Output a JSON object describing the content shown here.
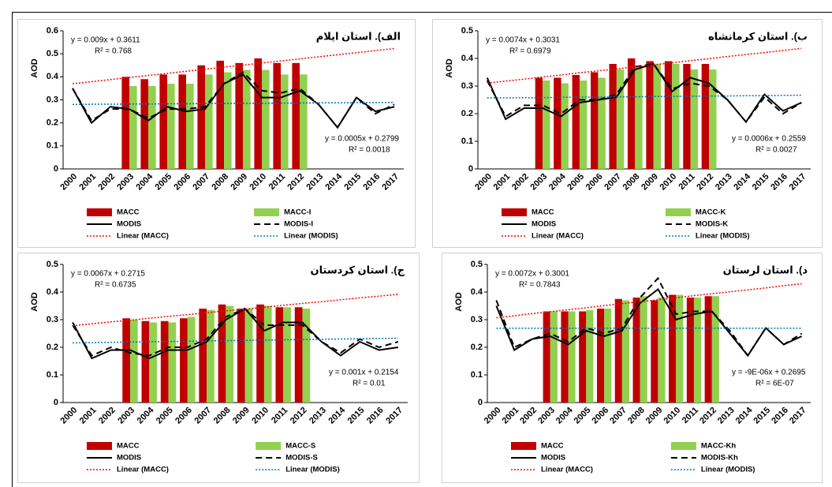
{
  "chart_data": [
    {
      "type": "bar",
      "title": "الف). استان ایلام",
      "y_label": "AOD",
      "categories": [
        "2000",
        "2001",
        "2002",
        "2003",
        "2004",
        "2005",
        "2006",
        "2007",
        "2008",
        "2009",
        "2010",
        "2011",
        "2012",
        "2013",
        "2014",
        "2015",
        "2016",
        "2017"
      ],
      "ylim": [
        0,
        0.6
      ],
      "yticks": [
        0,
        0.1,
        0.2,
        0.3,
        0.4,
        0.5,
        0.6
      ],
      "series": [
        {
          "name": "MACC",
          "type": "bar",
          "color": "#c00000",
          "values": [
            null,
            null,
            null,
            0.4,
            0.39,
            0.41,
            0.41,
            0.45,
            0.47,
            0.46,
            0.48,
            0.46,
            0.46,
            null,
            null,
            null,
            null,
            null
          ]
        },
        {
          "name": "MACC-I",
          "type": "bar",
          "color": "#92d050",
          "values": [
            null,
            null,
            null,
            0.36,
            0.36,
            0.37,
            0.37,
            0.41,
            0.42,
            0.43,
            0.43,
            0.41,
            0.41,
            null,
            null,
            null,
            null,
            null
          ]
        },
        {
          "name": "MODIS",
          "type": "line",
          "dash": "solid",
          "color": "#000000",
          "values": [
            0.35,
            0.2,
            0.27,
            0.26,
            0.21,
            0.27,
            0.25,
            0.26,
            0.37,
            0.41,
            0.31,
            0.31,
            0.34,
            0.28,
            0.18,
            0.31,
            0.25,
            0.27
          ]
        },
        {
          "name": "MODIS-I",
          "type": "line",
          "dash": "dashed",
          "color": "#000000",
          "values": [
            0.35,
            0.21,
            0.26,
            0.26,
            0.22,
            0.26,
            0.26,
            0.27,
            0.37,
            0.42,
            0.34,
            0.33,
            0.35,
            0.28,
            0.18,
            0.31,
            0.24,
            0.28
          ]
        },
        {
          "name": "Linear (MACC)",
          "type": "line",
          "dash": "dotted",
          "color": "#ff0000",
          "values": [
            0.37,
            0.379,
            0.388,
            0.397,
            0.406,
            0.415,
            0.424,
            0.433,
            0.442,
            0.451,
            0.46,
            0.469,
            0.478,
            0.487,
            0.496,
            0.505,
            0.514,
            0.523
          ]
        },
        {
          "name": "Linear (MODIS)",
          "type": "line",
          "dash": "dotted",
          "color": "#0070c0",
          "values": [
            0.28,
            0.281,
            0.281,
            0.282,
            0.282,
            0.283,
            0.283,
            0.284,
            0.284,
            0.285,
            0.285,
            0.286,
            0.286,
            0.287,
            0.287,
            0.288,
            0.288,
            0.289
          ]
        }
      ],
      "annotations": [
        {
          "text": "y = 0.009x + 0.3611",
          "color": "#ff0000"
        },
        {
          "text": "R² = 0.768",
          "color": "#ff0000"
        },
        {
          "text": "y = 0.0005x + 0.2799",
          "color": "#0070c0"
        },
        {
          "text": "R² = 0.0018",
          "color": "#0070c0"
        }
      ]
    },
    {
      "type": "bar",
      "title": "ب). استان کرمانشاه",
      "y_label": "AOD",
      "categories": [
        "2000",
        "2001",
        "2002",
        "2003",
        "2004",
        "2005",
        "2006",
        "2007",
        "2008",
        "2009",
        "2010",
        "2011",
        "2012",
        "2013",
        "2014",
        "2015",
        "2016",
        "2017"
      ],
      "ylim": [
        0,
        0.5
      ],
      "yticks": [
        0,
        0.1,
        0.2,
        0.3,
        0.4,
        0.5
      ],
      "series": [
        {
          "name": "MACC",
          "type": "bar",
          "color": "#c00000",
          "values": [
            null,
            null,
            null,
            0.33,
            0.33,
            0.34,
            0.35,
            0.38,
            0.4,
            0.39,
            0.39,
            0.38,
            0.38,
            null,
            null,
            null,
            null,
            null
          ]
        },
        {
          "name": "MACC-K",
          "type": "bar",
          "color": "#92d050",
          "values": [
            null,
            null,
            null,
            0.32,
            0.31,
            0.32,
            0.33,
            0.36,
            0.37,
            0.38,
            0.38,
            0.36,
            0.36,
            null,
            null,
            null,
            null,
            null
          ]
        },
        {
          "name": "MODIS",
          "type": "line",
          "dash": "solid",
          "color": "#000000",
          "values": [
            0.33,
            0.18,
            0.22,
            0.22,
            0.19,
            0.24,
            0.25,
            0.26,
            0.36,
            0.38,
            0.28,
            0.33,
            0.31,
            0.25,
            0.17,
            0.27,
            0.21,
            0.24
          ]
        },
        {
          "name": "MODIS-K",
          "type": "line",
          "dash": "dashed",
          "color": "#000000",
          "values": [
            0.32,
            0.19,
            0.23,
            0.23,
            0.2,
            0.25,
            0.25,
            0.27,
            0.37,
            0.38,
            0.29,
            0.31,
            0.3,
            0.25,
            0.17,
            0.26,
            0.2,
            0.24
          ]
        },
        {
          "name": "Linear (MACC)",
          "type": "line",
          "dash": "dotted",
          "color": "#ff0000",
          "values": [
            0.311,
            0.318,
            0.325,
            0.333,
            0.34,
            0.348,
            0.355,
            0.362,
            0.37,
            0.377,
            0.384,
            0.392,
            0.399,
            0.407,
            0.414,
            0.421,
            0.429,
            0.436
          ]
        },
        {
          "name": "Linear (MODIS)",
          "type": "line",
          "dash": "dotted",
          "color": "#0070c0",
          "values": [
            0.257,
            0.257,
            0.258,
            0.258,
            0.259,
            0.26,
            0.26,
            0.261,
            0.261,
            0.262,
            0.263,
            0.263,
            0.264,
            0.264,
            0.265,
            0.265,
            0.266,
            0.267
          ]
        }
      ],
      "annotations": [
        {
          "text": "y = 0.0074x + 0.3031",
          "color": "#ff0000"
        },
        {
          "text": "R² = 0.6979",
          "color": "#ff0000"
        },
        {
          "text": "y = 0.0006x + 0.2559",
          "color": "#0070c0"
        },
        {
          "text": "R² = 0.0027",
          "color": "#0070c0"
        }
      ]
    },
    {
      "type": "bar",
      "title": "ج). استان کردستان",
      "y_label": "AOD",
      "categories": [
        "2000",
        "2001",
        "2002",
        "2003",
        "2004",
        "2005",
        "2006",
        "2007",
        "2008",
        "2009",
        "2010",
        "2011",
        "2012",
        "2013",
        "2014",
        "2015",
        "2016",
        "2017"
      ],
      "ylim": [
        0,
        0.5
      ],
      "yticks": [
        0,
        0.1,
        0.2,
        0.3,
        0.4,
        0.5
      ],
      "series": [
        {
          "name": "MACC",
          "type": "bar",
          "color": "#c00000",
          "values": [
            null,
            null,
            null,
            0.305,
            0.295,
            0.295,
            0.305,
            0.34,
            0.355,
            0.34,
            0.355,
            0.345,
            0.345,
            null,
            null,
            null,
            null,
            null
          ]
        },
        {
          "name": "MACC-S",
          "type": "bar",
          "color": "#92d050",
          "values": [
            null,
            null,
            null,
            0.3,
            0.29,
            0.29,
            0.31,
            0.335,
            0.35,
            0.34,
            0.35,
            0.345,
            0.34,
            null,
            null,
            null,
            null,
            null
          ]
        },
        {
          "name": "MODIS",
          "type": "line",
          "dash": "solid",
          "color": "#000000",
          "values": [
            0.29,
            0.16,
            0.19,
            0.19,
            0.16,
            0.19,
            0.19,
            0.22,
            0.3,
            0.34,
            0.26,
            0.29,
            0.29,
            0.22,
            0.17,
            0.22,
            0.19,
            0.2
          ]
        },
        {
          "name": "MODIS-S",
          "type": "line",
          "dash": "dashed",
          "color": "#000000",
          "values": [
            0.28,
            0.17,
            0.2,
            0.18,
            0.17,
            0.2,
            0.2,
            0.23,
            0.31,
            0.34,
            0.28,
            0.28,
            0.28,
            0.22,
            0.18,
            0.23,
            0.2,
            0.22
          ]
        },
        {
          "name": "Linear (MACC)",
          "type": "line",
          "dash": "dotted",
          "color": "#ff0000",
          "values": [
            0.278,
            0.285,
            0.292,
            0.298,
            0.305,
            0.312,
            0.318,
            0.325,
            0.332,
            0.338,
            0.345,
            0.352,
            0.359,
            0.365,
            0.372,
            0.379,
            0.385,
            0.392
          ]
        },
        {
          "name": "Linear (MODIS)",
          "type": "line",
          "dash": "dotted",
          "color": "#0070c0",
          "values": [
            0.216,
            0.217,
            0.218,
            0.219,
            0.22,
            0.221,
            0.222,
            0.223,
            0.224,
            0.225,
            0.226,
            0.227,
            0.228,
            0.229,
            0.23,
            0.231,
            0.232,
            0.233
          ]
        }
      ],
      "annotations": [
        {
          "text": "y = 0.0067x + 0.2715",
          "color": "#ff0000"
        },
        {
          "text": "R² = 0.6735",
          "color": "#ff0000"
        },
        {
          "text": "y = 0.001x + 0.2154",
          "color": "#0070c0"
        },
        {
          "text": "R² = 0.01",
          "color": "#0070c0"
        }
      ]
    },
    {
      "type": "bar",
      "title": "د). استان لرستان",
      "y_label": "AOD",
      "categories": [
        "2000",
        "2001",
        "2002",
        "2003",
        "2004",
        "2005",
        "2006",
        "2007",
        "2008",
        "2009",
        "2010",
        "2011",
        "2012",
        "2013",
        "2014",
        "2015",
        "2016",
        "2017"
      ],
      "ylim": [
        0,
        0.5
      ],
      "yticks": [
        0,
        0.1,
        0.2,
        0.3,
        0.4,
        0.5
      ],
      "series": [
        {
          "name": "MACC",
          "type": "bar",
          "color": "#c00000",
          "values": [
            null,
            null,
            null,
            0.33,
            0.33,
            0.33,
            0.34,
            0.375,
            0.38,
            0.37,
            0.39,
            0.38,
            0.385,
            null,
            null,
            null,
            null,
            null
          ]
        },
        {
          "name": "MACC-Kh",
          "type": "bar",
          "color": "#92d050",
          "values": [
            null,
            null,
            null,
            0.33,
            0.33,
            0.335,
            0.34,
            0.37,
            0.385,
            0.38,
            0.39,
            0.38,
            0.385,
            null,
            null,
            null,
            null,
            null
          ]
        },
        {
          "name": "MODIS",
          "type": "line",
          "dash": "solid",
          "color": "#000000",
          "values": [
            0.35,
            0.19,
            0.23,
            0.24,
            0.21,
            0.26,
            0.24,
            0.26,
            0.36,
            0.41,
            0.3,
            0.32,
            0.33,
            0.25,
            0.17,
            0.27,
            0.21,
            0.24
          ]
        },
        {
          "name": "MODIS-Kh",
          "type": "line",
          "dash": "dashed",
          "color": "#000000",
          "values": [
            0.37,
            0.2,
            0.23,
            0.25,
            0.22,
            0.27,
            0.25,
            0.27,
            0.38,
            0.45,
            0.32,
            0.33,
            0.33,
            0.26,
            0.17,
            0.27,
            0.21,
            0.25
          ]
        },
        {
          "name": "Linear (MACC)",
          "type": "line",
          "dash": "dotted",
          "color": "#ff0000",
          "values": [
            0.307,
            0.314,
            0.322,
            0.329,
            0.336,
            0.343,
            0.351,
            0.358,
            0.365,
            0.372,
            0.379,
            0.387,
            0.394,
            0.401,
            0.408,
            0.415,
            0.423,
            0.43
          ]
        },
        {
          "name": "Linear (MODIS)",
          "type": "line",
          "dash": "dotted",
          "color": "#0070c0",
          "values": [
            0.269,
            0.269,
            0.269,
            0.269,
            0.269,
            0.269,
            0.269,
            0.269,
            0.269,
            0.269,
            0.269,
            0.269,
            0.269,
            0.269,
            0.269,
            0.269,
            0.269,
            0.269
          ]
        }
      ],
      "annotations": [
        {
          "text": "y = 0.0072x + 0.3001",
          "color": "#ff0000"
        },
        {
          "text": "R² = 0.7843",
          "color": "#ff0000"
        },
        {
          "text": "y = -9E-06x + 0.2695",
          "color": "#0070c0"
        },
        {
          "text": "R² = 6E-07",
          "color": "#0070c0"
        }
      ]
    }
  ]
}
